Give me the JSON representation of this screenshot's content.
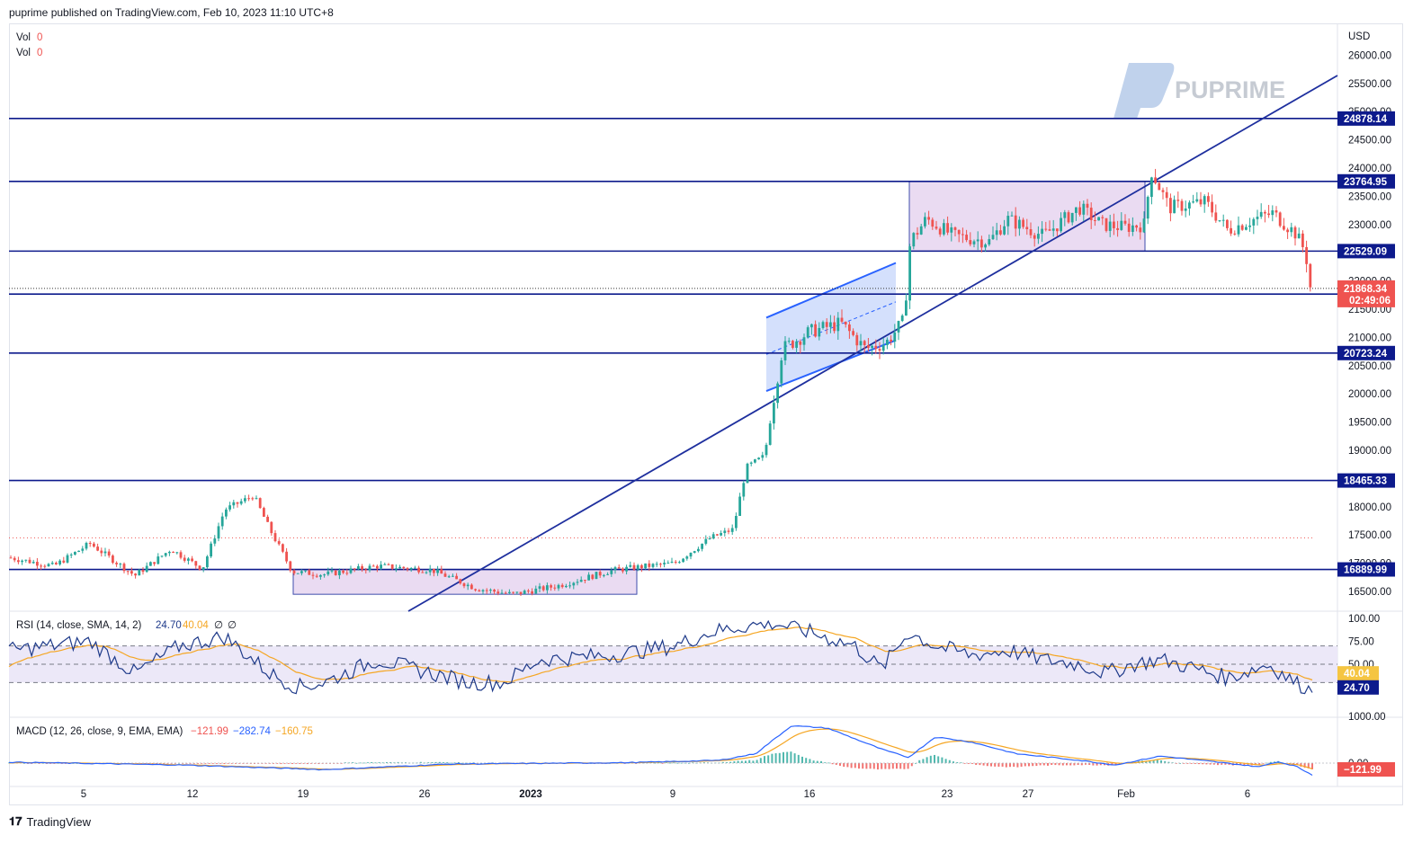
{
  "header": {
    "published": "puprime published on TradingView.com, Feb 10, 2023 11:10 UTC+8"
  },
  "footer": {
    "brand": "TradingView"
  },
  "watermark": {
    "text": "PUPRIME"
  },
  "colors": {
    "up": "#26a69a",
    "down": "#ef5350",
    "level": "#0d1a8c",
    "trend": "#1e2f9e",
    "box": "#e7d5f0",
    "channel": "#c5d6fb",
    "rsi": "#1e3a8a",
    "rsi_ma": "#f5a623",
    "macd": "#2962ff",
    "signal": "#f5a623"
  },
  "legend": {
    "vol1_label": "Vol",
    "vol1_value": "0",
    "vol2_label": "Vol",
    "vol2_value": "0",
    "rsi_label": "RSI (14, close, SMA, 14, 2)",
    "rsi_v1": "24.70",
    "rsi_v2": "40.04",
    "rsi_v3": "∅",
    "rsi_v4": "∅",
    "macd_label": "MACD (12, 26, close, 9, EMA, EMA)",
    "macd_v1": "−121.99",
    "macd_v2": "−282.74",
    "macd_v3": "−160.75"
  },
  "chart_data": {
    "type": "candlestick",
    "currency": "USD",
    "price_ticks": [
      "26000.00",
      "25500.00",
      "25000.00",
      "24500.00",
      "24000.00",
      "23500.00",
      "23000.00",
      "22500.00",
      "22000.00",
      "21500.00",
      "21000.00",
      "20500.00",
      "20000.00",
      "19500.00",
      "19000.00",
      "18500.00",
      "18000.00",
      "17500.00",
      "17000.00",
      "16500.00"
    ],
    "ylim": [
      16150,
      26500
    ],
    "x_labels": [
      "5",
      "12",
      "19",
      "26",
      "2023",
      "9",
      "16",
      "23",
      "27",
      "Feb",
      "6"
    ],
    "levels": [
      {
        "value": 24878.14,
        "label": "24878.14"
      },
      {
        "value": 23764.95,
        "label": "23764.95"
      },
      {
        "value": 22529.09,
        "label": "22529.09"
      },
      {
        "value": 21767.83,
        "label": "21767.83"
      },
      {
        "value": 20723.24,
        "label": "20723.24"
      },
      {
        "value": 18465.33,
        "label": "18465.33"
      },
      {
        "value": 16889.99,
        "label": "16889.99"
      }
    ],
    "last_price": {
      "value": 21868.34,
      "label": "21868.34",
      "countdown": "02:49:06"
    },
    "rsi": {
      "ticks": [
        "100.00",
        "75.00",
        "50.00"
      ],
      "upper": 70,
      "lower": 30,
      "value": 24.7,
      "value_label": "24.70",
      "ma": 40.04,
      "ma_label": "40.04"
    },
    "macd": {
      "ticks": [
        "1000.00",
        "0.00"
      ],
      "macd": -282.74,
      "signal": -160.75,
      "hist": -121.99,
      "hist_label": "−121.99"
    }
  }
}
